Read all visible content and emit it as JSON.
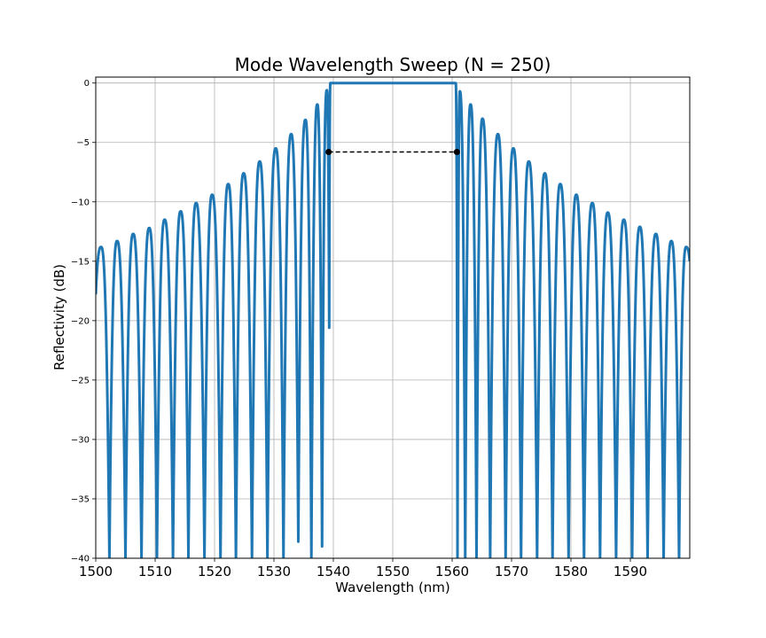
{
  "chart_data": {
    "type": "line",
    "title": "Mode Wavelength Sweep (N = 250)",
    "xlabel": "Wavelength (nm)",
    "ylabel": "Reflectivity (dB)",
    "xlim": [
      1500,
      1600
    ],
    "ylim": [
      -40,
      0.5
    ],
    "xticks": [
      1500,
      1510,
      1520,
      1530,
      1540,
      1550,
      1560,
      1570,
      1580,
      1590
    ],
    "yticks": [
      0,
      -5,
      -10,
      -15,
      -20,
      -25,
      -30,
      -35,
      -40
    ],
    "grid": true,
    "series": [
      {
        "color": "#1f77b4",
        "stopband": [
          1539.5,
          1560.6
        ],
        "left_peaks": [
          [
            1500.9,
            -13.8
          ],
          [
            1503.6,
            -13.3
          ],
          [
            1506.3,
            -12.7
          ],
          [
            1509.0,
            -12.2
          ],
          [
            1511.6,
            -11.5
          ],
          [
            1514.3,
            -10.8
          ],
          [
            1516.9,
            -10.1
          ],
          [
            1519.6,
            -9.4
          ],
          [
            1522.3,
            -8.5
          ],
          [
            1524.9,
            -7.6
          ],
          [
            1527.6,
            -6.6
          ],
          [
            1530.3,
            -5.5
          ],
          [
            1532.9,
            -4.3
          ],
          [
            1535.3,
            -3.1
          ],
          [
            1537.3,
            -1.8
          ],
          [
            1538.9,
            -0.6
          ]
        ],
        "right_peaks": [
          [
            1561.3,
            -0.7
          ],
          [
            1563.1,
            -1.8
          ],
          [
            1565.1,
            -3.0
          ],
          [
            1567.7,
            -4.3
          ],
          [
            1570.3,
            -5.5
          ],
          [
            1572.9,
            -6.6
          ],
          [
            1575.6,
            -7.6
          ],
          [
            1578.2,
            -8.5
          ],
          [
            1580.9,
            -9.4
          ],
          [
            1583.6,
            -10.1
          ],
          [
            1586.2,
            -10.9
          ],
          [
            1588.9,
            -11.5
          ],
          [
            1591.6,
            -12.1
          ],
          [
            1594.3,
            -12.7
          ],
          [
            1596.9,
            -13.3
          ],
          [
            1599.4,
            -13.8
          ]
        ],
        "left_nulls": [
          [
            1502.3,
            -40
          ],
          [
            1505.0,
            -40
          ],
          [
            1507.7,
            -40
          ],
          [
            1510.3,
            -40
          ],
          [
            1513.0,
            -40
          ],
          [
            1515.6,
            -40
          ],
          [
            1518.3,
            -40
          ],
          [
            1521.0,
            -40
          ],
          [
            1523.6,
            -40
          ],
          [
            1526.3,
            -40
          ],
          [
            1528.9,
            -40
          ],
          [
            1531.6,
            -40
          ],
          [
            1534.1,
            -38.6
          ],
          [
            1536.3,
            -40
          ],
          [
            1538.1,
            -39.0
          ],
          [
            1539.3,
            -20.6
          ]
        ],
        "right_nulls": [
          [
            1560.9,
            -40
          ],
          [
            1562.2,
            -40
          ],
          [
            1564.1,
            -40
          ],
          [
            1566.4,
            -40
          ],
          [
            1569.0,
            -40
          ],
          [
            1571.6,
            -40
          ],
          [
            1574.3,
            -40
          ],
          [
            1576.9,
            -40
          ],
          [
            1579.6,
            -40
          ],
          [
            1582.2,
            -40
          ],
          [
            1584.9,
            -40
          ],
          [
            1587.6,
            -40
          ],
          [
            1590.3,
            -40
          ],
          [
            1592.9,
            -40
          ],
          [
            1595.6,
            -40
          ],
          [
            1598.2,
            -40
          ]
        ],
        "start": [
          1500,
          -17.8
        ],
        "end": [
          1600,
          -15.0
        ]
      }
    ],
    "annotation": {
      "x": [
        1539.2,
        1560.8
      ],
      "y": -5.8,
      "style": "dashed",
      "color": "#000000"
    }
  }
}
